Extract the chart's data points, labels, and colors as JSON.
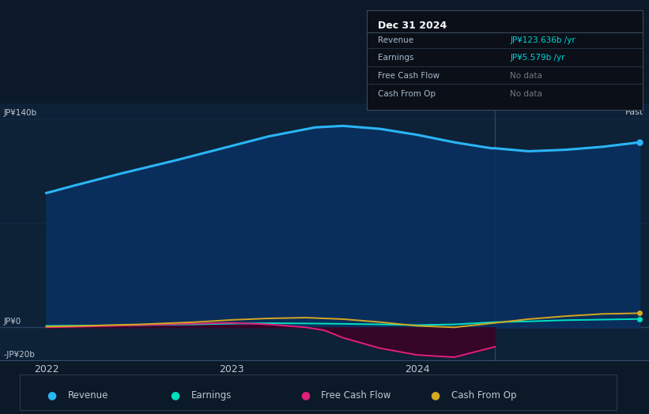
{
  "bg_color": "#0b1929",
  "chart_bg_color": "#0d2137",
  "tooltip_bg": "#0a0f18",
  "grid_color": "#1e3550",
  "y_label_140": "JP¥140b",
  "y_label_0": "JP¥0",
  "y_label_neg20": "-JP¥20b",
  "x_labels": [
    "2022",
    "2023",
    "2024"
  ],
  "past_label": "Past",
  "tooltip_title": "Dec 31 2024",
  "tooltip_rows": [
    [
      "Revenue",
      "JP¥123.636b /yr",
      "#00d4d4"
    ],
    [
      "Earnings",
      "JP¥5.579b /yr",
      "#00d4d4"
    ],
    [
      "Free Cash Flow",
      "No data",
      "#777777"
    ],
    [
      "Cash From Op",
      "No data",
      "#777777"
    ]
  ],
  "legend_items": [
    [
      "Revenue",
      "#2ab5f5"
    ],
    [
      "Earnings",
      "#00e0c0"
    ],
    [
      "Free Cash Flow",
      "#e0207a"
    ],
    [
      "Cash From Op",
      "#d4a820"
    ]
  ],
  "ylim": [
    -22,
    150
  ],
  "xlim": [
    2021.75,
    2025.25
  ],
  "divider_x": 2024.42,
  "revenue_x": [
    2022.0,
    2022.15,
    2022.4,
    2022.7,
    2022.95,
    2023.2,
    2023.45,
    2023.6,
    2023.8,
    2024.0,
    2024.2,
    2024.4,
    2024.42,
    2024.6,
    2024.8,
    2025.0,
    2025.2
  ],
  "revenue_y": [
    90,
    95,
    103,
    112,
    120,
    128,
    134,
    135,
    133,
    129,
    124,
    120,
    120,
    118,
    119,
    121,
    124
  ],
  "earnings_x": [
    2022.0,
    2022.2,
    2022.5,
    2022.8,
    2023.0,
    2023.2,
    2023.5,
    2023.8,
    2024.0,
    2024.2,
    2024.42,
    2024.6,
    2024.8,
    2025.0,
    2025.2
  ],
  "earnings_y": [
    1.0,
    1.2,
    1.5,
    2.0,
    2.5,
    2.8,
    2.5,
    2.0,
    1.5,
    2.0,
    3.5,
    4.0,
    4.8,
    5.2,
    5.6
  ],
  "fcf_x": [
    2022.0,
    2022.2,
    2022.5,
    2022.8,
    2023.0,
    2023.2,
    2023.4,
    2023.5,
    2023.6,
    2023.8,
    2024.0,
    2024.2,
    2024.42
  ],
  "fcf_y": [
    0.0,
    0.5,
    1.5,
    2.5,
    3.0,
    2.0,
    0.0,
    -2.0,
    -7.0,
    -14.0,
    -18.5,
    -20.0,
    -13.0
  ],
  "cashop_x": [
    2022.0,
    2022.2,
    2022.5,
    2022.8,
    2023.0,
    2023.2,
    2023.4,
    2023.6,
    2023.8,
    2024.0,
    2024.2,
    2024.42,
    2024.6,
    2024.8,
    2025.0,
    2025.2
  ],
  "cashop_y": [
    0.5,
    1.0,
    2.0,
    3.5,
    5.0,
    6.0,
    6.5,
    5.5,
    3.5,
    1.0,
    0.0,
    3.0,
    5.5,
    7.5,
    9.0,
    9.5
  ],
  "revenue_color": "#2ab5f5",
  "revenue_fill": "#0a3060",
  "earnings_color": "#00e0c0",
  "fcf_color": "#e0207a",
  "fcf_fill": "#3d0025",
  "cashop_color": "#d4a820",
  "lw_revenue": 2.2,
  "lw_others": 1.4
}
